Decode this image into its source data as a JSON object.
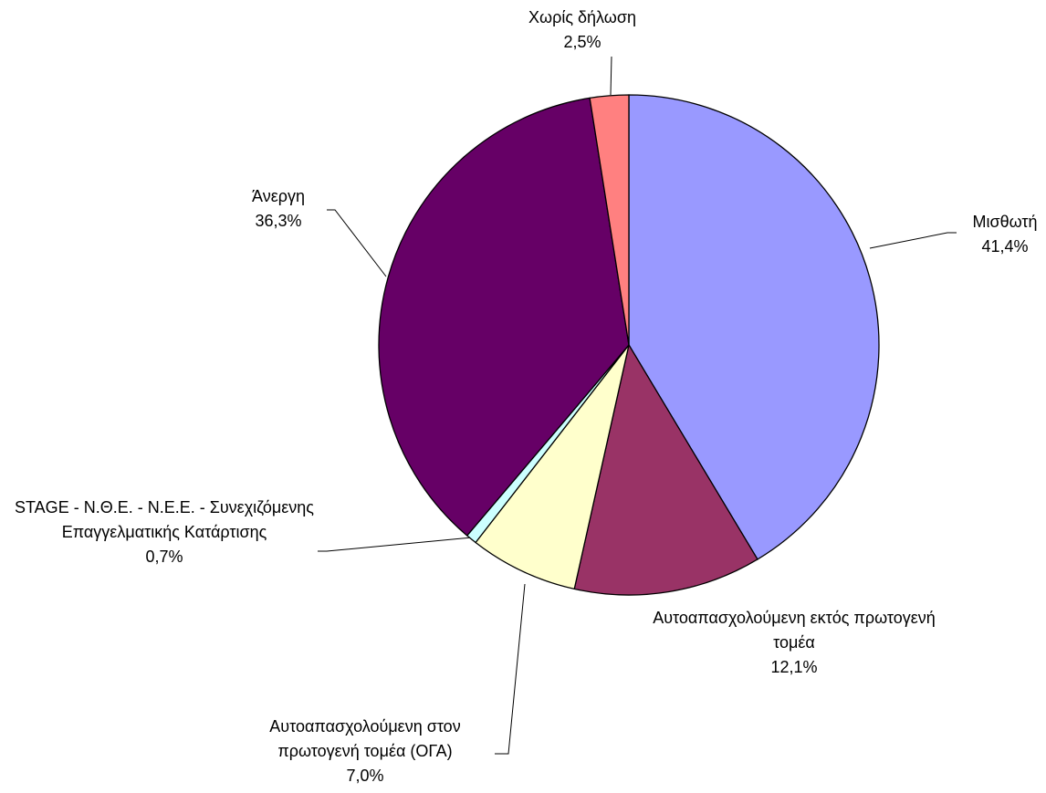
{
  "chart_data": {
    "type": "pie",
    "categories": [
      "Μισθωτή",
      "Αυτοαπασχολούμενη εκτός πρωτογενή τομέα",
      "Αυτοαπασχολούμενη στον πρωτογενή τομέα (ΟΓΑ)",
      "STAGE - Ν.Θ.Ε. - Ν.Ε.Ε. - Συνεχιζόμενης Επαγγελματικής Κατάρτισης",
      "Άνεργη",
      "Χωρίς δήλωση"
    ],
    "values": [
      41.4,
      12.1,
      7.0,
      0.7,
      36.3,
      2.5
    ],
    "value_labels": [
      "41,4%",
      "12,1%",
      "7,0%",
      "0,7%",
      "36,3%",
      "2,5%"
    ],
    "colors": [
      "#9999ff",
      "#993366",
      "#ffffcc",
      "#ccffff",
      "#660066",
      "#ff8080"
    ]
  }
}
